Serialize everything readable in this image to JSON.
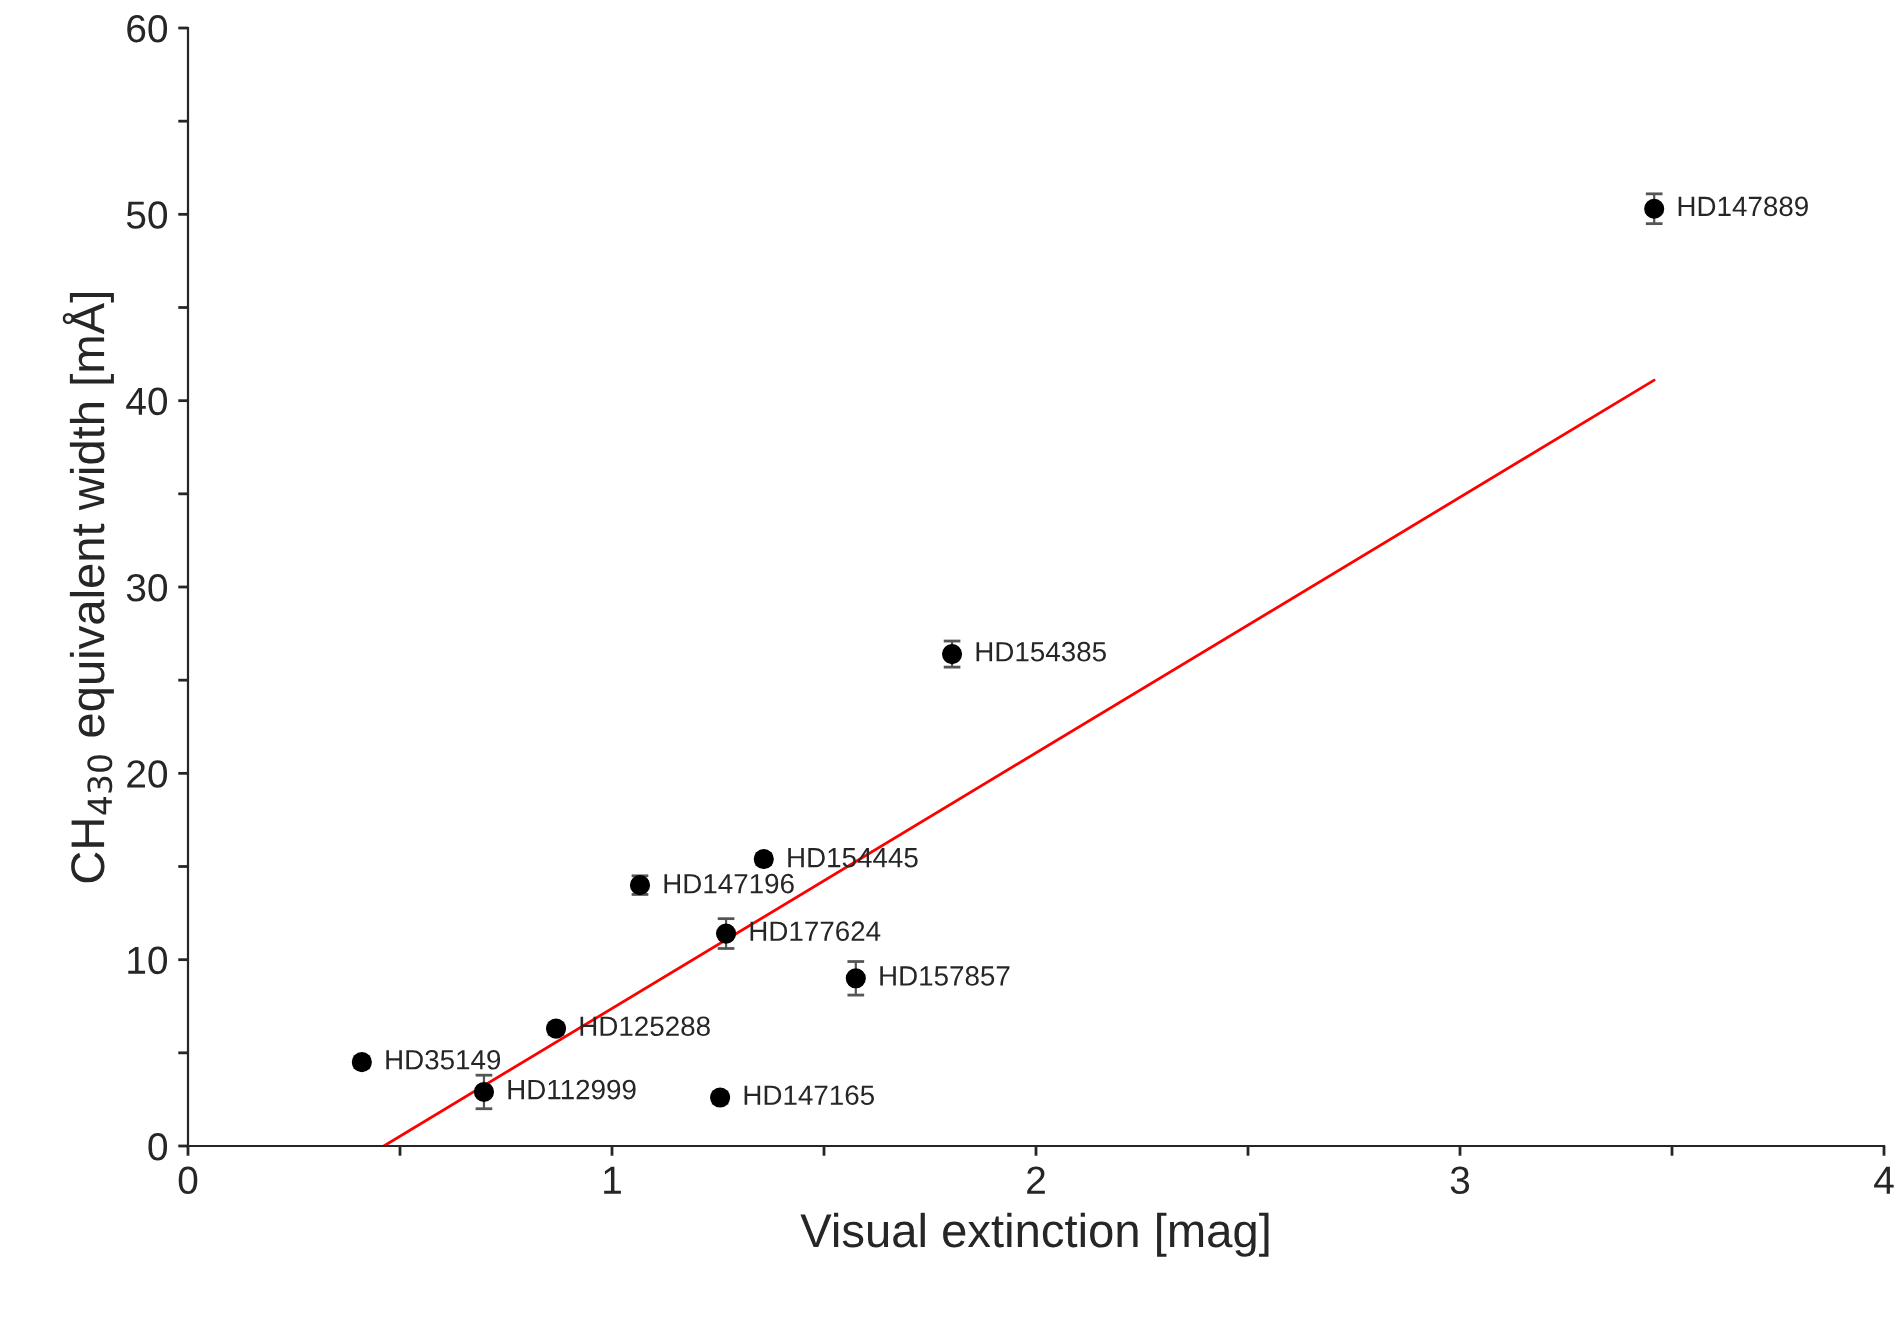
{
  "chart_data": {
    "type": "scatter",
    "xlabel": "Visual extinction [mag]",
    "ylabel": "CH$_{430}$ equivalent width [mÅ]",
    "xlim": [
      0,
      4
    ],
    "ylim": [
      0,
      60
    ],
    "xticks": [
      0,
      {
        "value": 0.5,
        "label": null
      },
      1,
      {
        "value": 1.5,
        "label": null
      },
      2,
      {
        "value": 2.5,
        "label": null
      },
      3,
      {
        "value": 3.5,
        "label": null
      },
      4
    ],
    "yticks": [
      0,
      {
        "value": 5,
        "label": null
      },
      10,
      {
        "value": 15,
        "label": null
      },
      20,
      {
        "value": 25,
        "label": null
      },
      30,
      {
        "value": 35,
        "label": null
      },
      40,
      {
        "value": 45,
        "label": null
      },
      50,
      {
        "value": 55,
        "label": null
      },
      60
    ],
    "grid": false,
    "legend": false,
    "series": [
      {
        "color": "#000000",
        "marker": "circle",
        "x": [
          3.458,
          1.802,
          1.358,
          1.066,
          1.269,
          1.575,
          0.868,
          0.41,
          0.698,
          1.255
        ],
        "values": [
          50.3,
          26.4,
          15.4,
          14.0,
          11.4,
          9.0,
          6.3,
          4.5,
          2.9,
          2.6
        ],
        "errors": [
          0.8,
          0.7,
          0.3,
          0.5,
          0.8,
          0.9,
          0.3,
          0.3,
          0.9,
          0.3
        ]
      },
      {
        "type": "line",
        "color": "#ff0000",
        "x": [
          0.462,
          3.458
        ],
        "values": [
          0,
          41.1
        ]
      }
    ],
    "annotations": [
      {
        "text": "HD147889",
        "x": 3.458,
        "y": 50.3
      },
      {
        "text": "HD154385",
        "x": 1.802,
        "y": 26.4
      },
      {
        "text": "HD154445",
        "x": 1.358,
        "y": 15.35
      },
      {
        "text": "HD147196",
        "x": 1.066,
        "y": 13.95
      },
      {
        "text": "HD177624",
        "x": 1.269,
        "y": 11.4
      },
      {
        "text": "HD157857",
        "x": 1.575,
        "y": 9.0
      },
      {
        "text": "HD125288",
        "x": 0.868,
        "y": 6.3
      },
      {
        "text": "HD35149",
        "x": 0.41,
        "y": 4.5
      },
      {
        "text": "HD112999",
        "x": 0.698,
        "y": 2.9
      },
      {
        "text": "HD147165",
        "x": 1.255,
        "y": 2.6
      }
    ]
  }
}
